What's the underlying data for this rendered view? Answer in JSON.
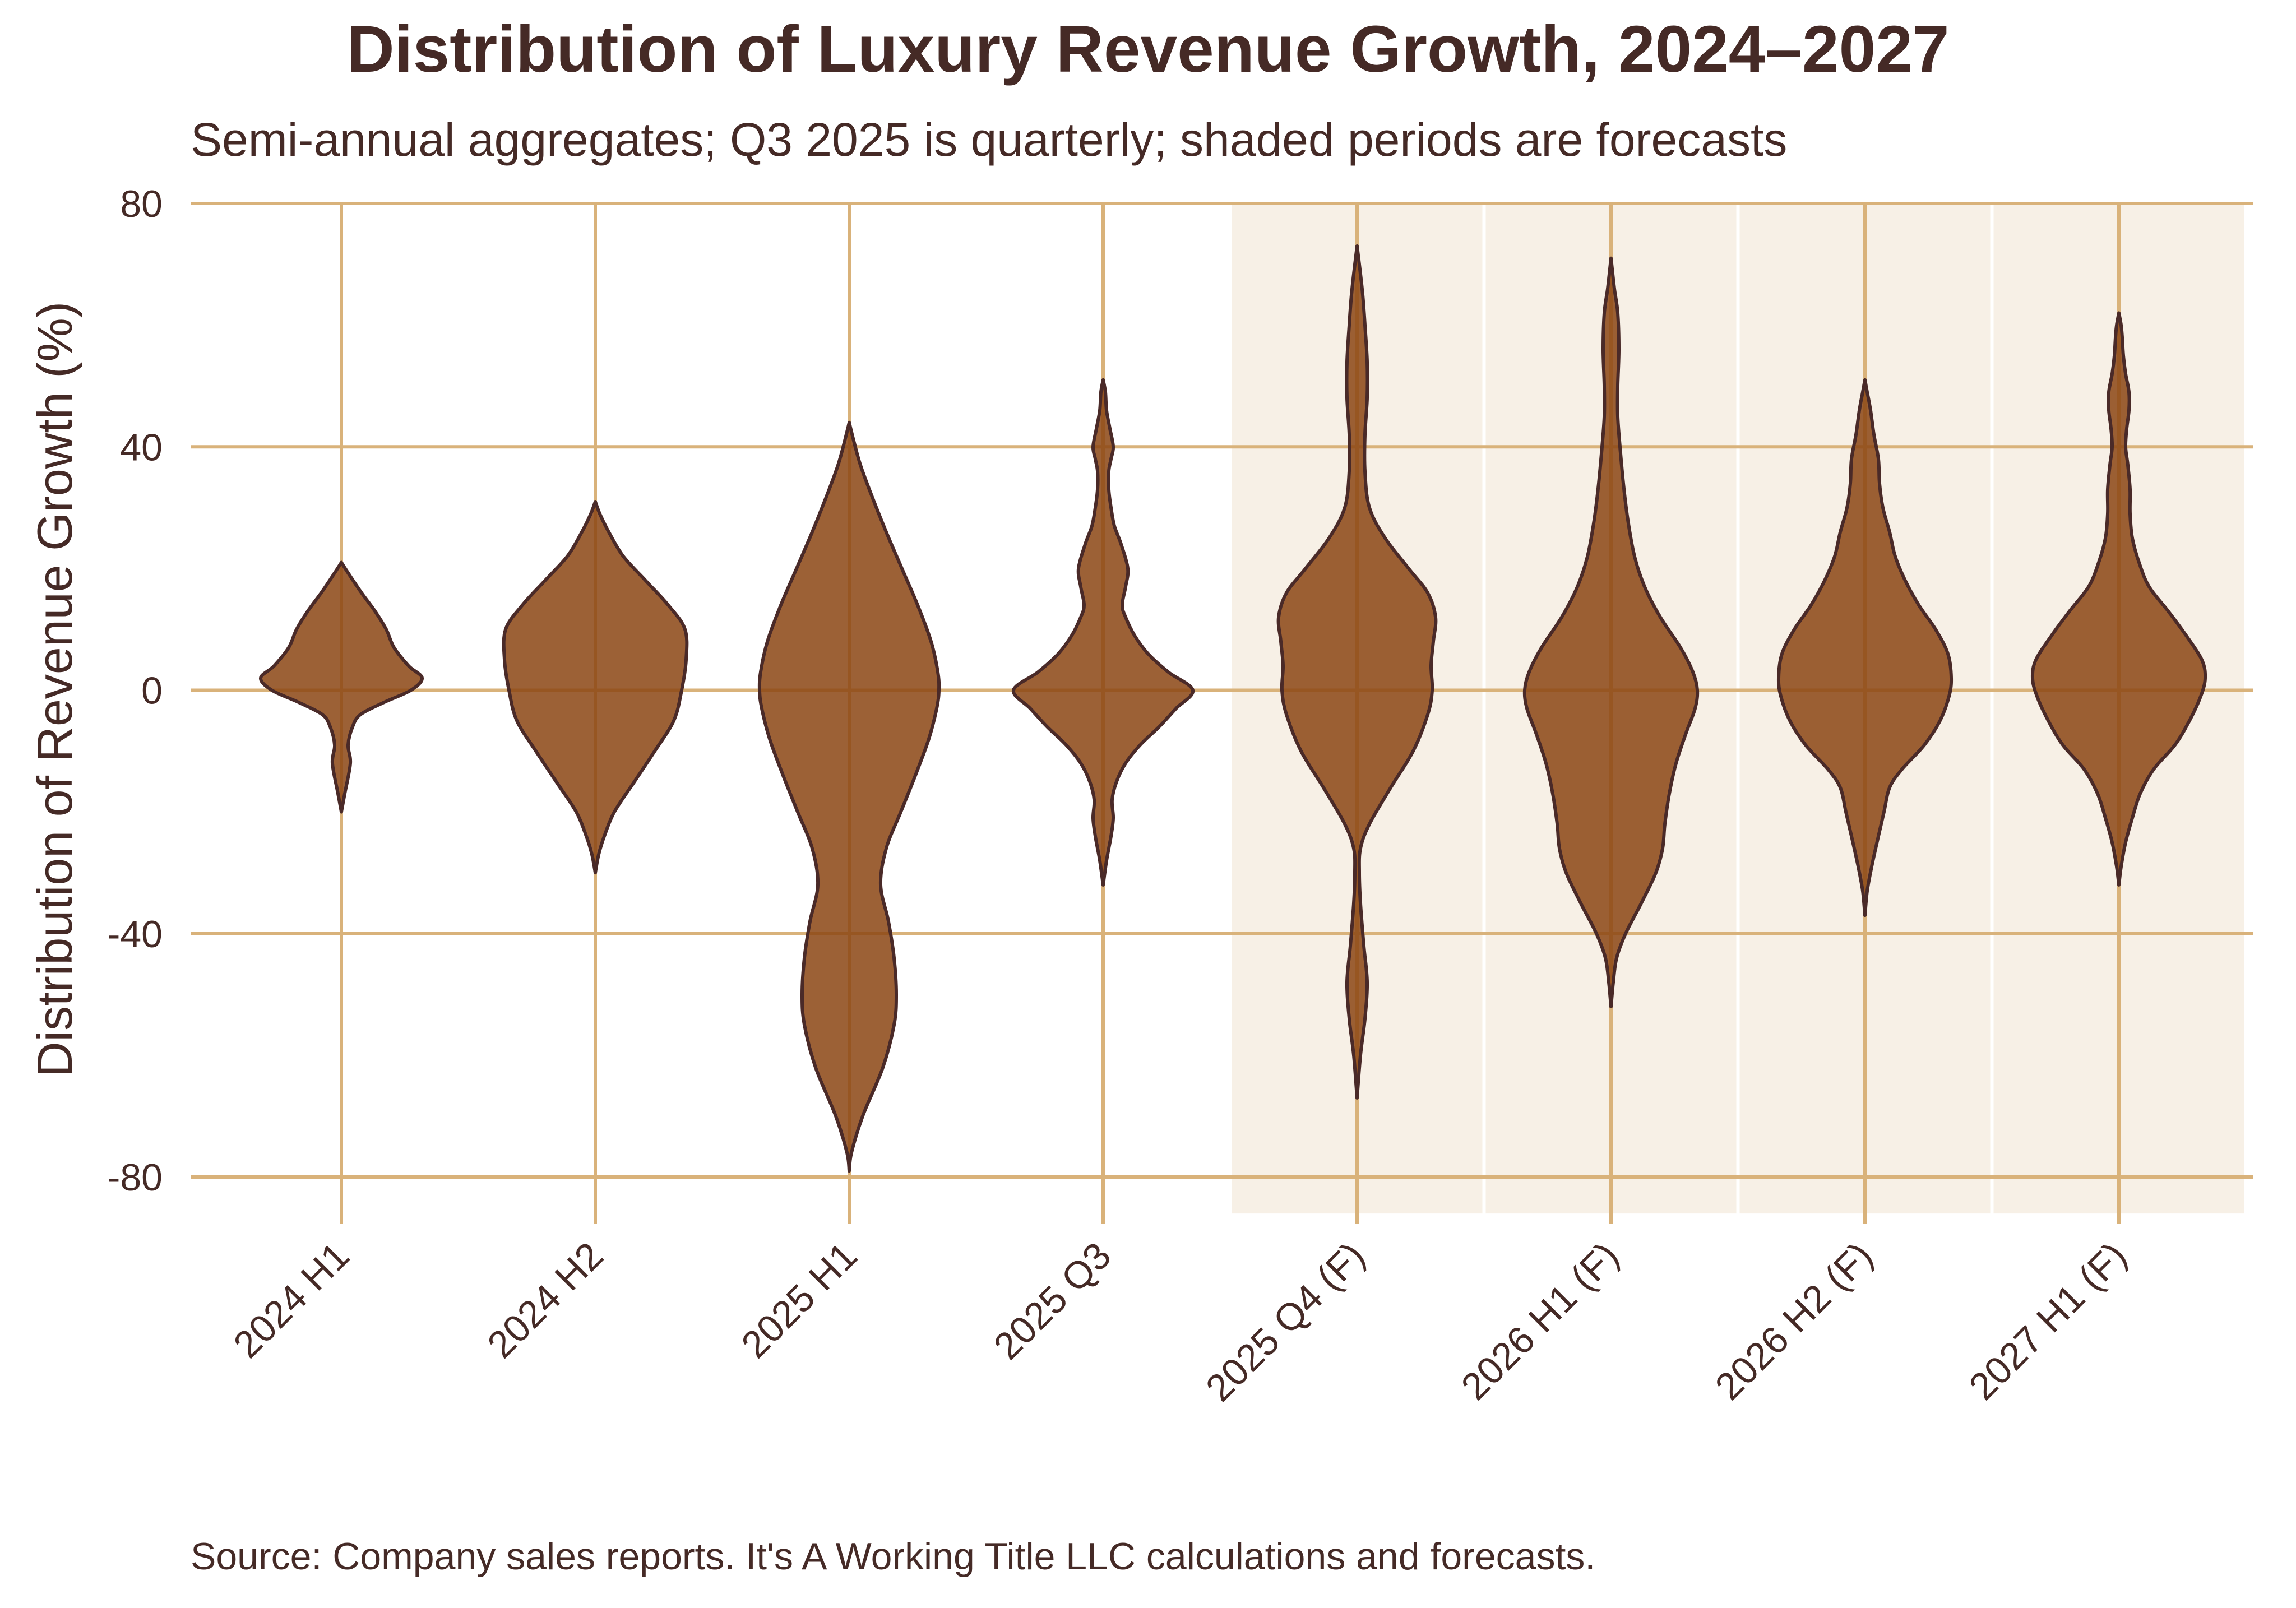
{
  "chart_data": {
    "type": "violin",
    "title": "Distribution of Luxury Revenue Growth, 2024–2027",
    "subtitle": "Semi-annual aggregates; Q3 2025 is quarterly; shaded periods are forecasts",
    "ylabel": "Distribution of Revenue Growth (%)",
    "xlabel": "",
    "source": "Source: Company sales reports. It's A Working Title LLC calculations and forecasts.",
    "ylim": [
      -86,
      80
    ],
    "yticks": [
      80,
      40,
      0,
      -40,
      -80
    ],
    "ytick_labels": [
      "80",
      "40",
      "0",
      "-40",
      "-80"
    ],
    "grid": true,
    "colors": {
      "violin_fill": "#8b4513",
      "violin_edge": "#4a2a28",
      "grid": "#d9b27a",
      "forecast_shade": "#f7f0e6",
      "text": "#452a26"
    },
    "categories": [
      "2024 H1",
      "2024 H2",
      "2025 H1",
      "2025 Q3",
      "2025 Q4 (F)",
      "2026 H1 (F)",
      "2026 H2 (F)",
      "2027 H1 (F)"
    ],
    "forecast": [
      false,
      false,
      false,
      false,
      true,
      true,
      true,
      true
    ],
    "violins": [
      {
        "category": "2024 H1",
        "min": -20,
        "max": 21,
        "profile": [
          [
            -20,
            0
          ],
          [
            -17,
            3
          ],
          [
            -12,
            8
          ],
          [
            -9,
            6
          ],
          [
            -6,
            10
          ],
          [
            -4,
            17
          ],
          [
            -2,
            38
          ],
          [
            0,
            62
          ],
          [
            2,
            72
          ],
          [
            4,
            60
          ],
          [
            7,
            47
          ],
          [
            10,
            40
          ],
          [
            13,
            30
          ],
          [
            16,
            18
          ],
          [
            19,
            7
          ],
          [
            21,
            0
          ]
        ]
      },
      {
        "category": "2024 H2",
        "min": -30,
        "max": 31,
        "profile": [
          [
            -30,
            0
          ],
          [
            -27,
            3
          ],
          [
            -24,
            8
          ],
          [
            -20,
            17
          ],
          [
            -15,
            35
          ],
          [
            -10,
            53
          ],
          [
            -5,
            70
          ],
          [
            0,
            77
          ],
          [
            5,
            81
          ],
          [
            10,
            80
          ],
          [
            14,
            65
          ],
          [
            18,
            45
          ],
          [
            22,
            25
          ],
          [
            26,
            12
          ],
          [
            29,
            4
          ],
          [
            31,
            0
          ]
        ]
      },
      {
        "category": "2025 H1",
        "min": -79,
        "max": 44,
        "profile": [
          [
            -79,
            0
          ],
          [
            -76,
            2
          ],
          [
            -70,
            12
          ],
          [
            -62,
            30
          ],
          [
            -55,
            40
          ],
          [
            -50,
            42
          ],
          [
            -44,
            40
          ],
          [
            -38,
            35
          ],
          [
            -32,
            28
          ],
          [
            -26,
            33
          ],
          [
            -20,
            46
          ],
          [
            -14,
            59
          ],
          [
            -8,
            71
          ],
          [
            -3,
            78
          ],
          [
            0,
            80
          ],
          [
            3,
            79
          ],
          [
            8,
            73
          ],
          [
            14,
            61
          ],
          [
            20,
            47
          ],
          [
            26,
            33
          ],
          [
            32,
            20
          ],
          [
            37,
            10
          ],
          [
            41,
            4
          ],
          [
            44,
            0
          ]
        ]
      },
      {
        "category": "2025 Q3",
        "min": -32,
        "max": 51,
        "profile": [
          [
            -32,
            0
          ],
          [
            -28,
            3
          ],
          [
            -24,
            7
          ],
          [
            -21,
            9
          ],
          [
            -18,
            8
          ],
          [
            -15,
            12
          ],
          [
            -12,
            20
          ],
          [
            -9,
            33
          ],
          [
            -6,
            50
          ],
          [
            -3,
            65
          ],
          [
            0,
            80
          ],
          [
            3,
            58
          ],
          [
            6,
            40
          ],
          [
            9,
            28
          ],
          [
            12,
            20
          ],
          [
            14,
            17
          ],
          [
            17,
            20
          ],
          [
            20,
            22
          ],
          [
            24,
            16
          ],
          [
            27,
            10
          ],
          [
            30,
            7
          ],
          [
            33,
            5
          ],
          [
            36,
            5
          ],
          [
            38,
            7
          ],
          [
            40,
            9
          ],
          [
            43,
            6
          ],
          [
            46,
            3
          ],
          [
            49,
            2
          ],
          [
            51,
            0
          ]
        ]
      },
      {
        "category": "2025 Q4 (F)",
        "min": -67,
        "max": 73,
        "profile": [
          [
            -67,
            0
          ],
          [
            -60,
            3
          ],
          [
            -54,
            7
          ],
          [
            -48,
            9
          ],
          [
            -42,
            6
          ],
          [
            -35,
            3
          ],
          [
            -30,
            2
          ],
          [
            -26,
            3
          ],
          [
            -22,
            11
          ],
          [
            -16,
            30
          ],
          [
            -10,
            50
          ],
          [
            -4,
            63
          ],
          [
            0,
            67
          ],
          [
            4,
            66
          ],
          [
            8,
            68
          ],
          [
            12,
            70
          ],
          [
            16,
            63
          ],
          [
            20,
            46
          ],
          [
            25,
            25
          ],
          [
            30,
            11
          ],
          [
            36,
            7
          ],
          [
            42,
            7
          ],
          [
            48,
            9
          ],
          [
            54,
            9
          ],
          [
            60,
            7
          ],
          [
            65,
            5
          ],
          [
            70,
            2
          ],
          [
            73,
            0
          ]
        ]
      },
      {
        "category": "2026 H1 (F)",
        "min": -52,
        "max": 71,
        "profile": [
          [
            -52,
            0
          ],
          [
            -48,
            2
          ],
          [
            -44,
            5
          ],
          [
            -40,
            13
          ],
          [
            -35,
            27
          ],
          [
            -30,
            40
          ],
          [
            -26,
            46
          ],
          [
            -22,
            48
          ],
          [
            -17,
            52
          ],
          [
            -12,
            58
          ],
          [
            -7,
            67
          ],
          [
            -3,
            75
          ],
          [
            0,
            77
          ],
          [
            3,
            73
          ],
          [
            7,
            62
          ],
          [
            12,
            44
          ],
          [
            17,
            30
          ],
          [
            22,
            21
          ],
          [
            28,
            15
          ],
          [
            34,
            11
          ],
          [
            40,
            8
          ],
          [
            45,
            6
          ],
          [
            50,
            6
          ],
          [
            56,
            7
          ],
          [
            62,
            6
          ],
          [
            66,
            3
          ],
          [
            71,
            0
          ]
        ]
      },
      {
        "category": "2026 H2 (F)",
        "min": -37,
        "max": 51,
        "profile": [
          [
            -37,
            0
          ],
          [
            -33,
            2
          ],
          [
            -29,
            6
          ],
          [
            -24,
            12
          ],
          [
            -20,
            17
          ],
          [
            -16,
            22
          ],
          [
            -13,
            33
          ],
          [
            -9,
            53
          ],
          [
            -5,
            67
          ],
          [
            -1,
            75
          ],
          [
            2,
            77
          ],
          [
            6,
            74
          ],
          [
            10,
            63
          ],
          [
            14,
            48
          ],
          [
            18,
            36
          ],
          [
            22,
            27
          ],
          [
            26,
            22
          ],
          [
            30,
            16
          ],
          [
            34,
            13
          ],
          [
            38,
            12
          ],
          [
            42,
            8
          ],
          [
            46,
            5
          ],
          [
            49,
            2
          ],
          [
            51,
            0
          ]
        ]
      },
      {
        "category": "2027 H1 (F)",
        "min": -32,
        "max": 62,
        "profile": [
          [
            -32,
            0
          ],
          [
            -29,
            2
          ],
          [
            -25,
            6
          ],
          [
            -21,
            12
          ],
          [
            -17,
            19
          ],
          [
            -13,
            31
          ],
          [
            -9,
            50
          ],
          [
            -5,
            63
          ],
          [
            -1,
            73
          ],
          [
            2,
            77
          ],
          [
            5,
            74
          ],
          [
            9,
            60
          ],
          [
            13,
            44
          ],
          [
            17,
            27
          ],
          [
            21,
            18
          ],
          [
            25,
            12
          ],
          [
            29,
            10
          ],
          [
            33,
            10
          ],
          [
            37,
            8
          ],
          [
            40,
            6
          ],
          [
            43,
            7
          ],
          [
            46,
            9
          ],
          [
            49,
            9
          ],
          [
            52,
            6
          ],
          [
            55,
            4
          ],
          [
            58,
            3
          ],
          [
            60,
            2
          ],
          [
            62,
            0
          ]
        ]
      }
    ]
  }
}
